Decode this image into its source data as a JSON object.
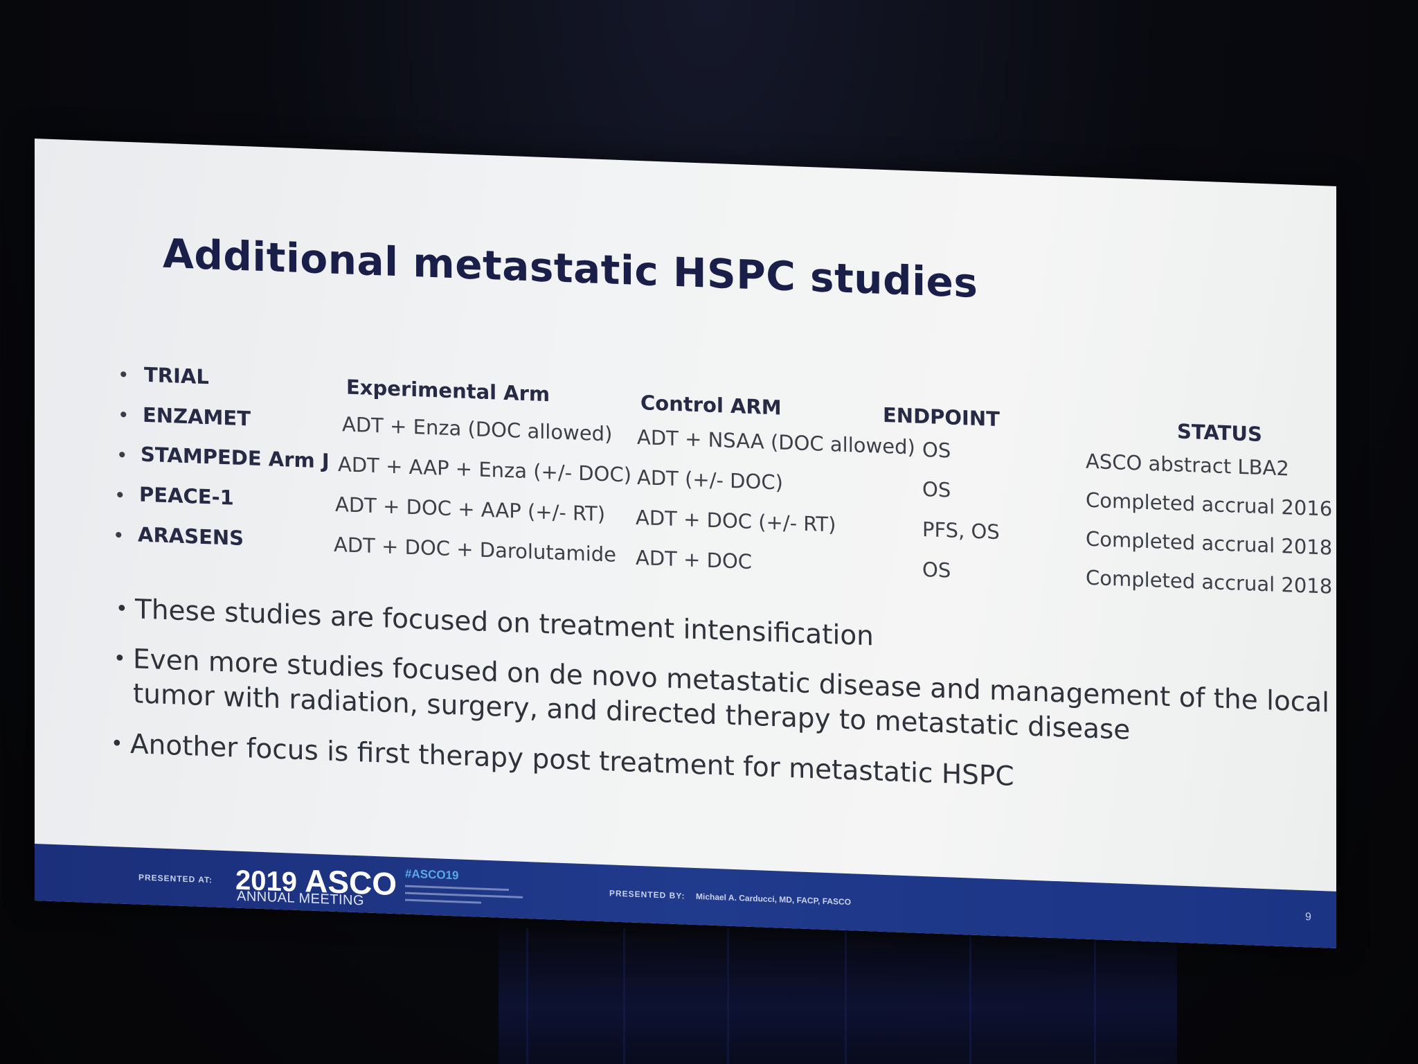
{
  "slide": {
    "title": "Additional metastatic HSPC studies",
    "table": {
      "headers": {
        "trial": "TRIAL",
        "experimental": "Experimental Arm",
        "control": "Control ARM",
        "endpoint": "ENDPOINT",
        "status": "STATUS"
      },
      "rows": [
        {
          "trial": "ENZAMET",
          "experimental": "ADT + Enza (DOC allowed)",
          "control": "ADT + NSAA (DOC allowed)",
          "endpoint": "OS",
          "status": "ASCO abstract LBA2"
        },
        {
          "trial": "STAMPEDE Arm J",
          "experimental": "ADT + AAP + Enza (+/- DOC)",
          "control": "ADT (+/- DOC)",
          "endpoint": "OS",
          "status": "Completed accrual 2016"
        },
        {
          "trial": "PEACE-1",
          "experimental": "ADT + DOC + AAP (+/- RT)",
          "control": "ADT + DOC (+/- RT)",
          "endpoint": "PFS, OS",
          "status": "Completed accrual 2018"
        },
        {
          "trial": "ARASENS",
          "experimental": "ADT + DOC + Darolutamide",
          "control": "ADT + DOC",
          "endpoint": "OS",
          "status": "Completed accrual 2018"
        }
      ]
    },
    "bullets": [
      "These studies are focused on treatment intensification",
      "Even more studies focused on de novo metastatic disease and management of the local tumor with radiation, surgery, and directed therapy to metastatic disease",
      "Another focus is first therapy post treatment for metastatic HSPC"
    ]
  },
  "footer": {
    "presented_at": "PRESENTED AT:",
    "year": "2019",
    "brand": "ASCO",
    "meeting": "ANNUAL MEETING",
    "hashtag": "#ASCO19",
    "presented_by_label": "PRESENTED BY:",
    "presenter": "Michael A. Carducci, MD, FACP, FASCO",
    "page": "9"
  },
  "colors": {
    "title": "#1a1f4a",
    "footer_band": "#203a8c",
    "hashtag": "#5aa8e8"
  }
}
